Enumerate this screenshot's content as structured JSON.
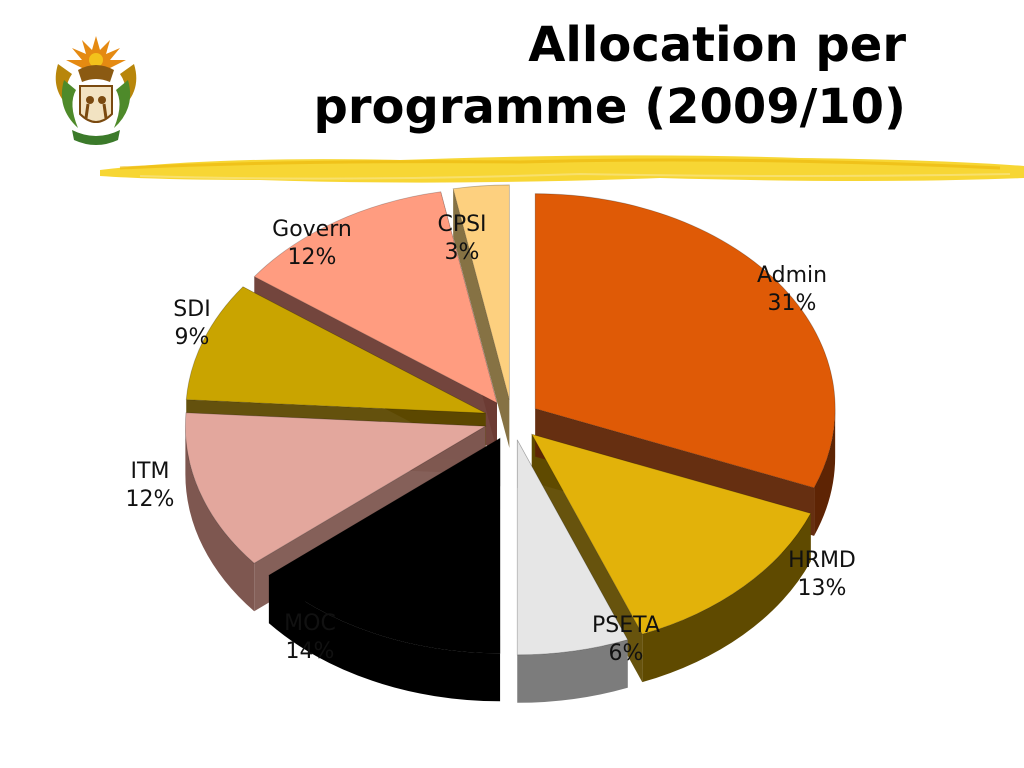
{
  "slide": {
    "title_line1": "Allocation per",
    "title_line2": "programme (2009/10)"
  },
  "icons": {
    "crest": "coat-of-arms-icon",
    "brush": "highlighter-stroke"
  },
  "chart_data": {
    "type": "pie",
    "title": "Allocation per programme (2009/10)",
    "subtitle": "",
    "three_d": true,
    "exploded": true,
    "legend": "none",
    "slices": [
      {
        "key": "admin",
        "name": "Admin",
        "value": 31,
        "label": "31%",
        "color": "#DF5A06",
        "side": "#5E2404"
      },
      {
        "key": "hrmd",
        "name": "HRMD",
        "value": 13,
        "label": "13%",
        "color": "#E2B20A",
        "side": "#5F4A00"
      },
      {
        "key": "pseta",
        "name": "PSETA",
        "value": 6,
        "label": "6%",
        "color": "#E6E6E6",
        "side": "#7C7C7C"
      },
      {
        "key": "moc",
        "name": "MOC",
        "value": 14,
        "label": "14%",
        "color": "#000000",
        "side": "#000000"
      },
      {
        "key": "itm",
        "name": "ITM",
        "value": 12,
        "label": "12%",
        "color": "#E3A79D",
        "side": "#7E5750"
      },
      {
        "key": "sdi",
        "name": "SDI",
        "value": 9,
        "label": "9%",
        "color": "#C9A400",
        "side": "#5C4800"
      },
      {
        "key": "govern",
        "name": "Govern",
        "value": 12,
        "label": "12%",
        "color": "#FF9C80",
        "side": "#6C3B33"
      },
      {
        "key": "cpsi",
        "name": "CPSI",
        "value": 3,
        "label": "3%",
        "color": "#FDD07F",
        "side": "#7F6A3A"
      }
    ]
  }
}
